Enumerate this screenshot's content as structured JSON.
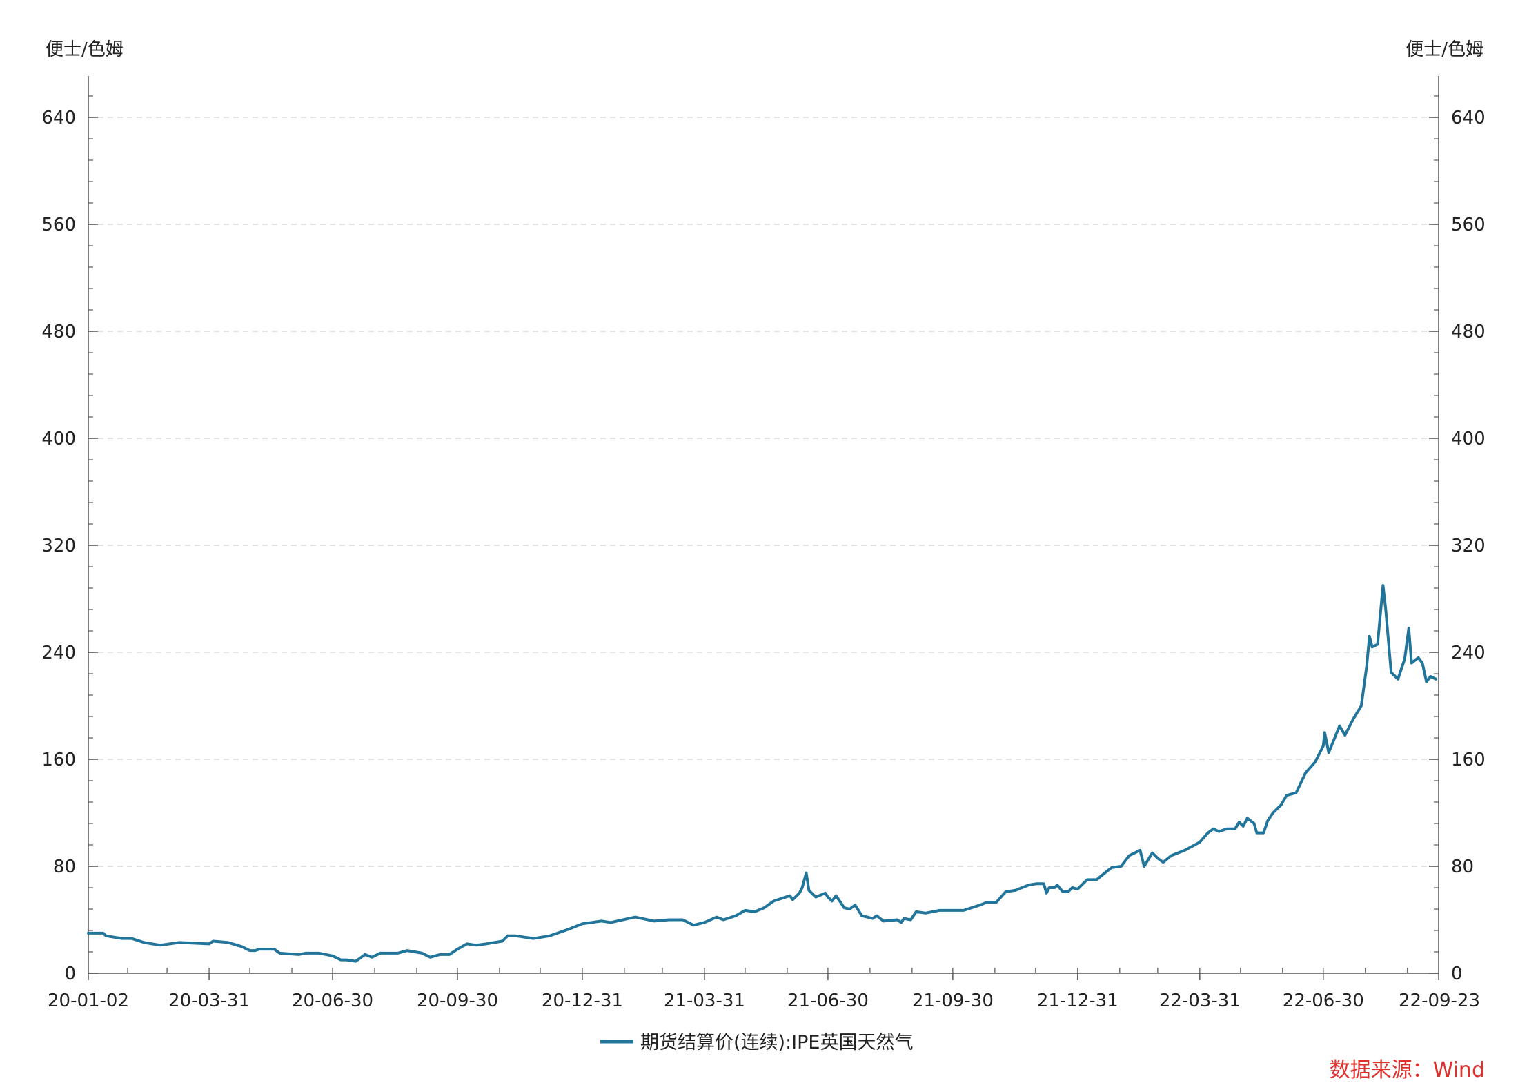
{
  "chart_data": {
    "type": "line",
    "y_unit_left": "便士/色姆",
    "y_unit_right": "便士/色姆",
    "ylim": [
      0,
      640
    ],
    "y_major_ticks": [
      0,
      80,
      160,
      240,
      320,
      400,
      480,
      560,
      640
    ],
    "y_minor_step": 16,
    "grid": true,
    "x_tick_labels": [
      "20-01-02",
      "20-03-31",
      "20-06-30",
      "20-09-30",
      "20-12-31",
      "21-03-31",
      "21-06-30",
      "21-09-30",
      "21-12-31",
      "22-03-31",
      "22-06-30",
      "22-09-23"
    ],
    "x_tick_dates": [
      "2020-01-02",
      "2020-03-31",
      "2020-06-30",
      "2020-09-30",
      "2020-12-31",
      "2021-03-31",
      "2021-06-30",
      "2021-09-30",
      "2021-12-31",
      "2022-03-31",
      "2022-06-30",
      "2022-09-23"
    ],
    "legend": "bottom-center",
    "series": [
      {
        "name": "期货结算价(连续):IPE英国天然气",
        "color": "#21759b",
        "points": [
          [
            "2020-01-02",
            30
          ],
          [
            "2020-01-13",
            30
          ],
          [
            "2020-01-15",
            28
          ],
          [
            "2020-01-27",
            26
          ],
          [
            "2020-02-03",
            26
          ],
          [
            "2020-02-12",
            23
          ],
          [
            "2020-02-24",
            21
          ],
          [
            "2020-03-02",
            22
          ],
          [
            "2020-03-09",
            23
          ],
          [
            "2020-03-31",
            22
          ],
          [
            "2020-04-03",
            24
          ],
          [
            "2020-04-14",
            23
          ],
          [
            "2020-04-24",
            20
          ],
          [
            "2020-04-30",
            17
          ],
          [
            "2020-05-04",
            17
          ],
          [
            "2020-05-07",
            18
          ],
          [
            "2020-05-18",
            18
          ],
          [
            "2020-05-22",
            15
          ],
          [
            "2020-06-05",
            14
          ],
          [
            "2020-06-10",
            15
          ],
          [
            "2020-06-20",
            15
          ],
          [
            "2020-06-30",
            13
          ],
          [
            "2020-07-06",
            10
          ],
          [
            "2020-07-10",
            10
          ],
          [
            "2020-07-17",
            9
          ],
          [
            "2020-07-24",
            14
          ],
          [
            "2020-07-29",
            12
          ],
          [
            "2020-08-04",
            15
          ],
          [
            "2020-08-17",
            15
          ],
          [
            "2020-08-24",
            17
          ],
          [
            "2020-09-04",
            15
          ],
          [
            "2020-09-10",
            12
          ],
          [
            "2020-09-17",
            14
          ],
          [
            "2020-09-24",
            14
          ],
          [
            "2020-09-30",
            18
          ],
          [
            "2020-10-07",
            22
          ],
          [
            "2020-10-14",
            21
          ],
          [
            "2020-10-21",
            22
          ],
          [
            "2020-11-02",
            24
          ],
          [
            "2020-11-06",
            28
          ],
          [
            "2020-11-12",
            28
          ],
          [
            "2020-11-25",
            26
          ],
          [
            "2020-12-07",
            28
          ],
          [
            "2020-12-21",
            33
          ],
          [
            "2020-12-31",
            37
          ],
          [
            "2021-01-14",
            39
          ],
          [
            "2021-01-21",
            38
          ],
          [
            "2021-02-08",
            42
          ],
          [
            "2021-02-22",
            39
          ],
          [
            "2021-03-05",
            40
          ],
          [
            "2021-03-15",
            40
          ],
          [
            "2021-03-23",
            36
          ],
          [
            "2021-03-31",
            38
          ],
          [
            "2021-04-09",
            42
          ],
          [
            "2021-04-14",
            40
          ],
          [
            "2021-04-23",
            43
          ],
          [
            "2021-04-30",
            47
          ],
          [
            "2021-05-07",
            46
          ],
          [
            "2021-05-14",
            49
          ],
          [
            "2021-05-21",
            54
          ],
          [
            "2021-06-02",
            58
          ],
          [
            "2021-06-04",
            55
          ],
          [
            "2021-06-09",
            60
          ],
          [
            "2021-06-11",
            64
          ],
          [
            "2021-06-14",
            75
          ],
          [
            "2021-06-16",
            62
          ],
          [
            "2021-06-21",
            57
          ],
          [
            "2021-06-28",
            60
          ],
          [
            "2021-06-30",
            57
          ],
          [
            "2021-07-03",
            54
          ],
          [
            "2021-07-06",
            58
          ],
          [
            "2021-07-12",
            49
          ],
          [
            "2021-07-16",
            48
          ],
          [
            "2021-07-20",
            51
          ],
          [
            "2021-07-25",
            43
          ],
          [
            "2021-08-02",
            41
          ],
          [
            "2021-08-05",
            43
          ],
          [
            "2021-08-10",
            39
          ],
          [
            "2021-08-20",
            40
          ],
          [
            "2021-08-23",
            38
          ],
          [
            "2021-08-25",
            41
          ],
          [
            "2021-08-30",
            40
          ],
          [
            "2021-09-03",
            46
          ],
          [
            "2021-09-10",
            45
          ],
          [
            "2021-09-20",
            47
          ],
          [
            "2021-09-30",
            47
          ],
          [
            "2021-10-08",
            47
          ],
          [
            "2021-10-20",
            51
          ],
          [
            "2021-10-25",
            53
          ],
          [
            "2021-11-01",
            53
          ],
          [
            "2021-11-08",
            61
          ],
          [
            "2021-11-15",
            62
          ],
          [
            "2021-11-25",
            66
          ],
          [
            "2021-12-01",
            67
          ],
          [
            "2021-12-06",
            67
          ],
          [
            "2021-12-08",
            60
          ],
          [
            "2021-12-10",
            64
          ],
          [
            "2021-12-14",
            64
          ],
          [
            "2021-12-16",
            66
          ],
          [
            "2021-12-20",
            61
          ],
          [
            "2021-12-24",
            61
          ],
          [
            "2021-12-27",
            64
          ],
          [
            "2021-12-31",
            63
          ],
          [
            "2022-01-03",
            66
          ],
          [
            "2022-01-07",
            70
          ],
          [
            "2022-01-14",
            70
          ],
          [
            "2022-01-20",
            75
          ],
          [
            "2022-01-25",
            79
          ],
          [
            "2022-02-01",
            80
          ],
          [
            "2022-02-07",
            88
          ],
          [
            "2022-02-15",
            92
          ],
          [
            "2022-02-18",
            80
          ],
          [
            "2022-02-24",
            90
          ],
          [
            "2022-02-28",
            86
          ],
          [
            "2022-03-04",
            83
          ],
          [
            "2022-03-10",
            88
          ],
          [
            "2022-03-20",
            92
          ],
          [
            "2022-03-31",
            98
          ],
          [
            "2022-04-06",
            105
          ],
          [
            "2022-04-10",
            108
          ],
          [
            "2022-04-14",
            106
          ],
          [
            "2022-04-20",
            108
          ],
          [
            "2022-04-26",
            108
          ],
          [
            "2022-04-29",
            113
          ],
          [
            "2022-05-02",
            110
          ],
          [
            "2022-05-05",
            116
          ],
          [
            "2022-05-10",
            112
          ],
          [
            "2022-05-12",
            105
          ],
          [
            "2022-05-17",
            105
          ],
          [
            "2022-05-20",
            114
          ],
          [
            "2022-05-24",
            120
          ],
          [
            "2022-05-30",
            126
          ],
          [
            "2022-06-03",
            133
          ],
          [
            "2022-06-10",
            135
          ],
          [
            "2022-06-17",
            150
          ],
          [
            "2022-06-24",
            158
          ],
          [
            "2022-06-30",
            170
          ],
          [
            "2022-07-01",
            180
          ],
          [
            "2022-07-04",
            165
          ],
          [
            "2022-07-08",
            175
          ],
          [
            "2022-07-12",
            185
          ],
          [
            "2022-07-16",
            178
          ],
          [
            "2022-07-22",
            190
          ],
          [
            "2022-07-28",
            200
          ],
          [
            "2022-08-01",
            230
          ],
          [
            "2022-08-03",
            252
          ],
          [
            "2022-08-05",
            244
          ],
          [
            "2022-08-09",
            246
          ],
          [
            "2022-08-13",
            290
          ],
          [
            "2022-08-15",
            272
          ],
          [
            "2022-08-19",
            225
          ],
          [
            "2022-08-24",
            220
          ],
          [
            "2022-08-29",
            235
          ],
          [
            "2022-09-01",
            258
          ],
          [
            "2022-09-03",
            232
          ],
          [
            "2022-09-08",
            236
          ],
          [
            "2022-09-11",
            232
          ],
          [
            "2022-09-14",
            218
          ],
          [
            "2022-09-17",
            222
          ],
          [
            "2022-09-21",
            220
          ]
        ]
      }
    ],
    "source": "数据来源：Wind"
  }
}
